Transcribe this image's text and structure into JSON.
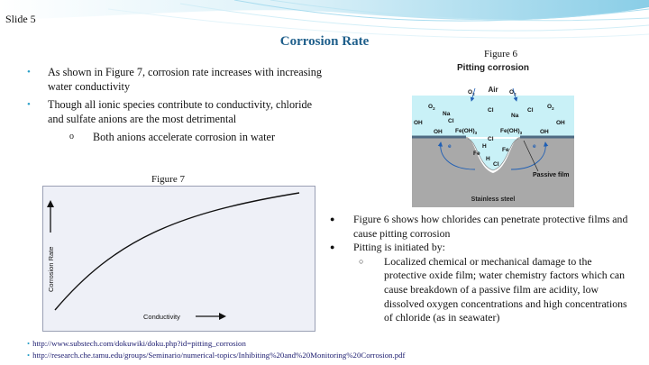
{
  "slide": {
    "label": "Slide 5",
    "title": "Corrosion Rate"
  },
  "left_bullets": [
    "As shown in Figure 7, corrosion rate increases with increasing water conductivity",
    "Though all ionic species contribute to conductivity, chloride and sulfate anions are the most detrimental"
  ],
  "left_sub_bullet": "Both anions accelerate corrosion in water",
  "figure6": {
    "caption": "Figure 6",
    "title": "Pitting corrosion",
    "labels": {
      "air": "Air",
      "o2": "O",
      "o2_sub": "2",
      "na": "Na",
      "cl": "Cl",
      "oh": "OH",
      "feoh3": "Fe(OH)",
      "feoh3_sub": "3",
      "h": "H",
      "fe": "Fe",
      "e": "e",
      "passive_film": "Passive film",
      "stainless_steel": "Stainless steel"
    },
    "colors": {
      "water": "#c9f1f7",
      "steel": "#a9a9a9",
      "film": "#4f6b83",
      "arrow": "#1f5fb5"
    }
  },
  "figure7": {
    "caption": "Figure 7",
    "ylabel": "Corrosion Rate",
    "xlabel": "Conductivity",
    "background": "#eef0f7"
  },
  "right_bullets": [
    "Figure 6 shows how chlorides can penetrate protective films and cause pitting corrosion",
    "Pitting is initiated by:"
  ],
  "right_sub_bullet": "Localized chemical or mechanical damage to the protective oxide film; water chemistry factors which can cause breakdown of a passive film are acidity, low dissolved oxygen concentrations and high concentrations of chloride (as in seawater)",
  "references": [
    "http://www.substech.com/dokuwiki/doku.php?id=pitting_corrosion",
    "http://research.che.tamu.edu/groups/Seminario/numerical-topics/Inhibiting%20and%20Monitoring%20Corrosion.pdf"
  ],
  "theme": {
    "accent": "#2aa0c8",
    "title_color": "#1f5f8b"
  }
}
